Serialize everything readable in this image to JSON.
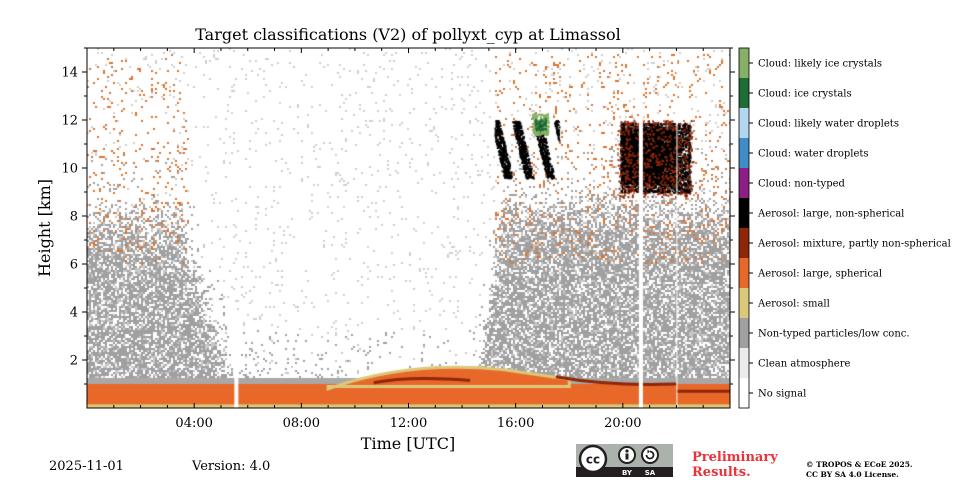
{
  "chart_data": {
    "type": "heatmap",
    "title": "Target classifications (V2) of pollyxt_cyp at Limassol",
    "xlabel": "Time [UTC]",
    "ylabel": "Height [km]",
    "xlim": [
      0,
      24
    ],
    "ylim": [
      0,
      15
    ],
    "x_ticks": [
      4,
      8,
      12,
      16,
      20
    ],
    "x_tick_labels": [
      "04:00",
      "08:00",
      "12:00",
      "16:00",
      "20:00"
    ],
    "y_ticks": [
      2,
      4,
      6,
      8,
      10,
      12,
      14
    ],
    "y_tick_labels": [
      "2",
      "4",
      "6",
      "8",
      "10",
      "12",
      "14"
    ],
    "grid": false,
    "legend_position": "right colorbar",
    "classes": [
      {
        "label": "No signal",
        "color": "#ffffff"
      },
      {
        "label": "Clean atmosphere",
        "color": "#ebebeb"
      },
      {
        "label": "Non-typed particles/low conc.",
        "color": "#a0a0a0"
      },
      {
        "label": "Aerosol: small",
        "color": "#dcc87a"
      },
      {
        "label": "Aerosol: large, spherical",
        "color": "#e8682a"
      },
      {
        "label": "Aerosol: mixture, partly non-spherical",
        "color": "#8f2608"
      },
      {
        "label": "Aerosol: large, non-spherical",
        "color": "#000000"
      },
      {
        "label": "Cloud: non-typed",
        "color": "#8b1f86"
      },
      {
        "label": "Cloud: water droplets",
        "color": "#3f8cc8"
      },
      {
        "label": "Cloud: likely water droplets",
        "color": "#b3d7f1"
      },
      {
        "label": "Cloud: ice crystals",
        "color": "#1d6e36"
      },
      {
        "label": "Cloud: likely ice crystals",
        "color": "#87b066"
      }
    ],
    "regions": [
      {
        "class": "Aerosol: large, spherical",
        "x": [
          0,
          24
        ],
        "y": [
          0.1,
          1.0
        ]
      },
      {
        "class": "Aerosol: small",
        "x": [
          0,
          24
        ],
        "y": [
          0,
          0.15
        ]
      },
      {
        "class": "Aerosol: mixture, partly non-spherical",
        "x": [
          10.5,
          14.5
        ],
        "y": [
          1.0,
          1.2
        ]
      },
      {
        "class": "Aerosol: mixture, partly non-spherical",
        "x": [
          17.5,
          22
        ],
        "y": [
          1.0,
          1.3
        ]
      },
      {
        "class": "Non-typed particles/low conc.",
        "x": [
          0,
          5.5
        ],
        "y": [
          1.0,
          8.0
        ]
      },
      {
        "class": "Non-typed particles/low conc.",
        "x": [
          15,
          24
        ],
        "y": [
          1.0,
          9.0
        ]
      },
      {
        "class": "Aerosol: large, non-spherical",
        "x": [
          15.2,
          17.6
        ],
        "y": [
          9.5,
          12.0
        ]
      },
      {
        "class": "Aerosol: large, non-spherical",
        "x": [
          19.9,
          22.5
        ],
        "y": [
          9.0,
          11.8
        ]
      },
      {
        "class": "Cloud: likely ice crystals",
        "x": [
          16.6,
          17.2
        ],
        "y": [
          11.4,
          12.3
        ]
      },
      {
        "class": "No signal",
        "x": [
          5.5,
          5.6
        ],
        "y": [
          0,
          4.0
        ]
      },
      {
        "class": "No signal",
        "x": [
          20.6,
          20.7
        ],
        "y": [
          0,
          15
        ]
      }
    ]
  },
  "footer": {
    "date": "2025-11-01",
    "version": "Version: 4.0",
    "preliminary_line1": "Preliminary",
    "preliminary_line2": "Results.",
    "copyright_line1": "© TROPOS & ECoE 2025.",
    "copyright_line2": "CC BY SA 4.0 License.",
    "license_badge": {
      "cc": "cc",
      "by": "BY",
      "sa": "SA"
    }
  },
  "colors": {
    "preliminary": "#e8333a",
    "badge_bg": "#aab2ab",
    "badge_bottom": "#231f20"
  }
}
